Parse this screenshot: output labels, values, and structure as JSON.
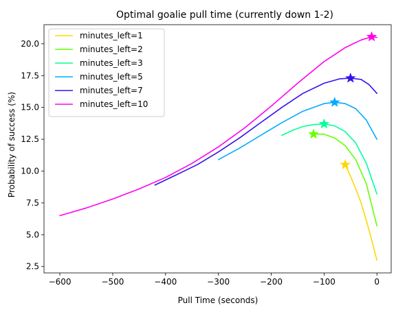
{
  "chart_data": {
    "type": "line",
    "title": "Optimal goalie pull time (currently down 1-2)",
    "xlabel": "Pull Time (seconds)",
    "ylabel": "Probability of success (%)",
    "xlim": [
      -630,
      27
    ],
    "ylim": [
      2.0,
      21.5
    ],
    "xticks": [
      -600,
      -500,
      -400,
      -300,
      -200,
      -100,
      0
    ],
    "xtick_labels": [
      "−600",
      "−500",
      "−400",
      "−300",
      "−200",
      "−100",
      "0"
    ],
    "yticks": [
      2.5,
      5.0,
      7.5,
      10.0,
      12.5,
      15.0,
      17.5,
      20.0
    ],
    "ytick_labels": [
      "2.5",
      "5.0",
      "7.5",
      "10.0",
      "12.5",
      "15.0",
      "17.5",
      "20.0"
    ],
    "grid": false,
    "legend_position": "top-left",
    "series": [
      {
        "name": "minutes_left=1",
        "color": "#ffd700",
        "x": [
          -60,
          -50,
          -40,
          -30,
          -20,
          -10,
          0
        ],
        "y": [
          10.5,
          9.6,
          8.6,
          7.5,
          6.1,
          4.6,
          3.0
        ],
        "optimum": {
          "x": -60,
          "y": 10.5
        }
      },
      {
        "name": "minutes_left=2",
        "color": "#66ff00",
        "x": [
          -120,
          -100,
          -80,
          -60,
          -40,
          -20,
          0
        ],
        "y": [
          12.9,
          12.9,
          12.6,
          12.0,
          10.9,
          9.0,
          5.7
        ],
        "optimum": {
          "x": -120,
          "y": 12.9
        }
      },
      {
        "name": "minutes_left=3",
        "color": "#00ff99",
        "x": [
          -180,
          -160,
          -140,
          -120,
          -100,
          -80,
          -60,
          -40,
          -20,
          0
        ],
        "y": [
          12.8,
          13.2,
          13.5,
          13.65,
          13.7,
          13.55,
          13.1,
          12.2,
          10.6,
          8.2
        ],
        "optimum": {
          "x": -100,
          "y": 13.7
        }
      },
      {
        "name": "minutes_left=5",
        "color": "#00aaff",
        "x": [
          -300,
          -260,
          -220,
          -180,
          -140,
          -100,
          -80,
          -60,
          -40,
          -20,
          0
        ],
        "y": [
          10.9,
          11.8,
          12.8,
          13.8,
          14.7,
          15.3,
          15.4,
          15.3,
          14.9,
          14.0,
          12.5
        ],
        "optimum": {
          "x": -80,
          "y": 15.4
        }
      },
      {
        "name": "minutes_left=7",
        "color": "#3311ee",
        "x": [
          -420,
          -380,
          -340,
          -300,
          -260,
          -220,
          -180,
          -140,
          -100,
          -70,
          -50,
          -30,
          -15,
          0
        ],
        "y": [
          8.9,
          9.7,
          10.5,
          11.5,
          12.6,
          13.8,
          15.0,
          16.1,
          16.9,
          17.25,
          17.3,
          17.2,
          16.8,
          16.1
        ],
        "optimum": {
          "x": -50,
          "y": 17.3
        }
      },
      {
        "name": "minutes_left=10",
        "color": "#ff00ee",
        "x": [
          -600,
          -550,
          -500,
          -450,
          -400,
          -350,
          -300,
          -250,
          -200,
          -150,
          -100,
          -60,
          -30,
          -10,
          0
        ],
        "y": [
          6.5,
          7.1,
          7.8,
          8.6,
          9.5,
          10.6,
          11.9,
          13.4,
          15.1,
          16.9,
          18.6,
          19.7,
          20.3,
          20.55,
          20.5
        ],
        "optimum": {
          "x": -10,
          "y": 20.55
        }
      }
    ]
  }
}
